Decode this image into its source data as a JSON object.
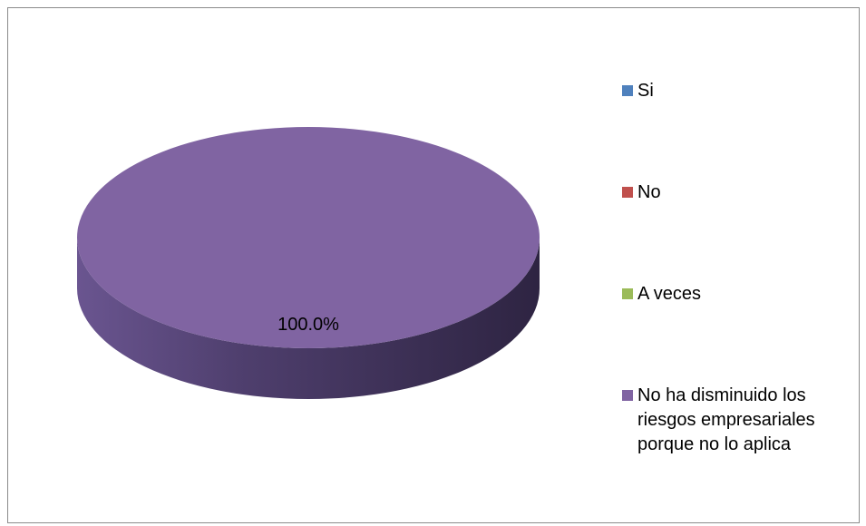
{
  "chart_data": {
    "type": "pie",
    "categories": [
      "Si",
      "No",
      "A veces",
      "No ha disminuido los riesgos empresariales porque no lo aplica"
    ],
    "values": [
      0,
      0,
      0,
      100.0
    ],
    "data_labels": [
      "",
      "",
      "",
      "100.0%"
    ],
    "colors": [
      "#4f81bd",
      "#c0504d",
      "#9bbb59",
      "#8064a2"
    ],
    "style": "3d",
    "legend_position": "right"
  }
}
